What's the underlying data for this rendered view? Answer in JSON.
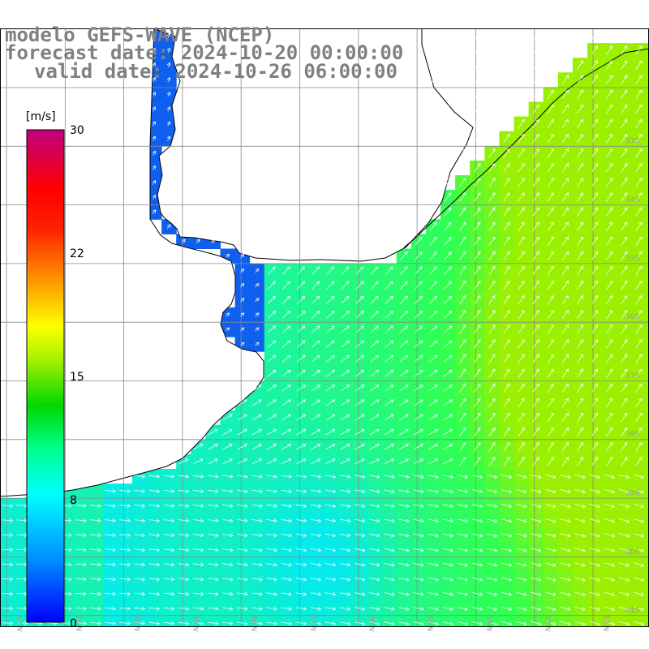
{
  "title": {
    "line1": "modelo GEFS-WAVE (NCEP)",
    "line2": "forecast date: 2024-10-20 00:00:00",
    "line3": "valid date: 2024-10-26 06:00:00"
  },
  "colorbar": {
    "unit": "[m/s]",
    "min": 0,
    "max": 30,
    "ticks": [
      {
        "label": "30",
        "value": 30
      },
      {
        "label": "22",
        "value": 22
      },
      {
        "label": "15",
        "value": 15
      },
      {
        "label": "8",
        "value": 8
      },
      {
        "label": "0",
        "value": 0
      }
    ],
    "colors": [
      "#0000ff",
      "#00a0ff",
      "#00ffff",
      "#00ff80",
      "#00e000",
      "#80ff00",
      "#ffff00",
      "#ffa000",
      "#ff4000",
      "#ff0000",
      "#e00060",
      "#c0107a"
    ]
  },
  "map": {
    "lat_labels": [
      "33S",
      "34S",
      "35S",
      "36S",
      "37S",
      "38S",
      "39S",
      "40S",
      "41S"
    ],
    "lon_labels": [
      "62W",
      "61W",
      "60W",
      "59W",
      "58W",
      "57W",
      "56W",
      "55W",
      "54W",
      "53W",
      "52W"
    ],
    "ocean_colors": {
      "low": "#1060f0",
      "mid": "#00e8ff",
      "high": "#30ff50",
      "peak": "#9af000"
    },
    "land_color": "#ffffff",
    "coast_color": "#000000",
    "grid_color": "#888888",
    "arrow_color": "#ffffff"
  }
}
